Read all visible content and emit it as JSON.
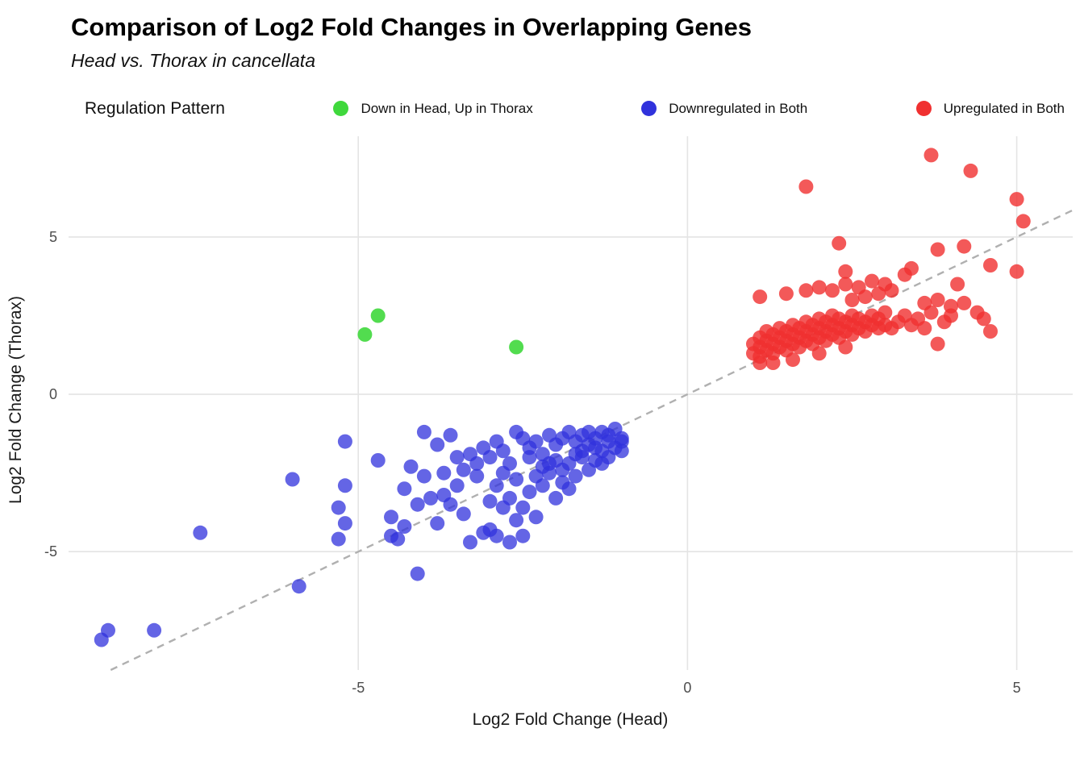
{
  "header": {
    "title": "Comparison of Log2 Fold Changes in Overlapping Genes",
    "subtitle": "Head vs. Thorax in cancellata"
  },
  "legend": {
    "title": "Regulation Pattern",
    "items": [
      {
        "label": "Down in Head, Up in Thorax",
        "color": "#3fd83c"
      },
      {
        "label": "Downregulated in Both",
        "color": "#3032dc"
      },
      {
        "label": "Upregulated in Both",
        "color": "#f03030"
      }
    ]
  },
  "chart_data": {
    "type": "scatter",
    "title": "Comparison of Log2 Fold Changes in Overlapping Genes",
    "subtitle": "Head vs. Thorax in cancellata",
    "xlabel": "Log2 Fold Change (Head)",
    "ylabel": "Log2 Fold Change (Thorax)",
    "xlim": [
      -9.4,
      5.85
    ],
    "ylim": [
      -8.76,
      8.2
    ],
    "x_ticks": [
      -5,
      0,
      5
    ],
    "y_ticks": [
      -5,
      0,
      5
    ],
    "grid": true,
    "legend_position": "top",
    "reference_line": {
      "type": "identity",
      "style": "dashed",
      "color": "#b0b0b0"
    },
    "series": [
      {
        "name": "Down in Head, Up in Thorax",
        "color": "#3fd83c",
        "opacity": 0.9,
        "points": [
          [
            -4.9,
            1.9
          ],
          [
            -4.7,
            2.5
          ],
          [
            -2.6,
            1.5
          ]
        ]
      },
      {
        "name": "Downregulated in Both",
        "color": "#3032dc",
        "opacity": 0.75,
        "points": [
          [
            -8.8,
            -7.5
          ],
          [
            -8.9,
            -7.8
          ],
          [
            -8.1,
            -7.5
          ],
          [
            -7.4,
            -4.4
          ],
          [
            -5.9,
            -6.1
          ],
          [
            -6.0,
            -2.7
          ],
          [
            -5.2,
            -1.5
          ],
          [
            -5.2,
            -2.9
          ],
          [
            -5.3,
            -3.6
          ],
          [
            -5.2,
            -4.1
          ],
          [
            -5.3,
            -4.6
          ],
          [
            -4.7,
            -2.1
          ],
          [
            -4.5,
            -3.9
          ],
          [
            -4.5,
            -4.5
          ],
          [
            -4.4,
            -4.6
          ],
          [
            -4.3,
            -4.2
          ],
          [
            -4.3,
            -3.0
          ],
          [
            -4.2,
            -2.3
          ],
          [
            -4.1,
            -3.5
          ],
          [
            -4.1,
            -5.7
          ],
          [
            -4.0,
            -2.6
          ],
          [
            -4.0,
            -1.2
          ],
          [
            -3.9,
            -3.3
          ],
          [
            -3.8,
            -4.1
          ],
          [
            -3.8,
            -1.6
          ],
          [
            -3.7,
            -3.2
          ],
          [
            -3.7,
            -2.5
          ],
          [
            -3.6,
            -3.5
          ],
          [
            -3.6,
            -1.3
          ],
          [
            -3.5,
            -2.9
          ],
          [
            -3.5,
            -2.0
          ],
          [
            -3.4,
            -3.8
          ],
          [
            -3.4,
            -2.4
          ],
          [
            -3.3,
            -4.7
          ],
          [
            -3.3,
            -1.9
          ],
          [
            -3.2,
            -2.6
          ],
          [
            -3.2,
            -2.2
          ],
          [
            -3.1,
            -4.4
          ],
          [
            -3.1,
            -1.7
          ],
          [
            -3.0,
            -4.3
          ],
          [
            -3.0,
            -3.4
          ],
          [
            -3.0,
            -2.0
          ],
          [
            -2.9,
            -4.5
          ],
          [
            -2.9,
            -2.9
          ],
          [
            -2.9,
            -1.5
          ],
          [
            -2.8,
            -3.6
          ],
          [
            -2.8,
            -2.5
          ],
          [
            -2.8,
            -1.8
          ],
          [
            -2.7,
            -4.7
          ],
          [
            -2.7,
            -3.3
          ],
          [
            -2.7,
            -2.2
          ],
          [
            -2.6,
            -4.0
          ],
          [
            -2.6,
            -2.7
          ],
          [
            -2.6,
            -1.2
          ],
          [
            -2.5,
            -4.5
          ],
          [
            -2.5,
            -3.6
          ],
          [
            -2.5,
            -1.4
          ],
          [
            -2.4,
            -3.1
          ],
          [
            -2.4,
            -2.0
          ],
          [
            -2.4,
            -1.7
          ],
          [
            -2.3,
            -3.9
          ],
          [
            -2.3,
            -2.6
          ],
          [
            -2.3,
            -1.5
          ],
          [
            -2.2,
            -2.9
          ],
          [
            -2.2,
            -2.3
          ],
          [
            -2.2,
            -1.9
          ],
          [
            -2.1,
            -2.5
          ],
          [
            -2.1,
            -2.2
          ],
          [
            -2.1,
            -1.3
          ],
          [
            -2.0,
            -3.3
          ],
          [
            -2.0,
            -2.1
          ],
          [
            -2.0,
            -1.6
          ],
          [
            -1.9,
            -2.8
          ],
          [
            -1.9,
            -2.4
          ],
          [
            -1.9,
            -1.4
          ],
          [
            -1.8,
            -3.0
          ],
          [
            -1.8,
            -2.2
          ],
          [
            -1.8,
            -1.2
          ],
          [
            -1.7,
            -2.6
          ],
          [
            -1.7,
            -1.9
          ],
          [
            -1.7,
            -1.5
          ],
          [
            -1.6,
            -2.0
          ],
          [
            -1.6,
            -1.8
          ],
          [
            -1.6,
            -1.3
          ],
          [
            -1.5,
            -2.4
          ],
          [
            -1.5,
            -1.6
          ],
          [
            -1.5,
            -1.2
          ],
          [
            -1.4,
            -2.1
          ],
          [
            -1.4,
            -1.7
          ],
          [
            -1.4,
            -1.4
          ],
          [
            -1.3,
            -2.2
          ],
          [
            -1.3,
            -1.8
          ],
          [
            -1.3,
            -1.2
          ],
          [
            -1.2,
            -2.0
          ],
          [
            -1.2,
            -1.5
          ],
          [
            -1.2,
            -1.3
          ],
          [
            -1.1,
            -1.7
          ],
          [
            -1.1,
            -1.1
          ],
          [
            -1.0,
            -1.8
          ],
          [
            -1.0,
            -1.5
          ],
          [
            -1.0,
            -1.4
          ]
        ]
      },
      {
        "name": "Upregulated in Both",
        "color": "#f03030",
        "opacity": 0.8,
        "points": [
          [
            1.8,
            6.6
          ],
          [
            3.7,
            7.6
          ],
          [
            4.3,
            7.1
          ],
          [
            5.0,
            6.2
          ],
          [
            5.1,
            5.5
          ],
          [
            2.3,
            4.8
          ],
          [
            3.8,
            4.6
          ],
          [
            4.2,
            4.7
          ],
          [
            4.6,
            4.1
          ],
          [
            5.0,
            3.9
          ],
          [
            3.4,
            4.0
          ],
          [
            2.4,
            3.9
          ],
          [
            4.1,
            3.5
          ],
          [
            3.3,
            3.8
          ],
          [
            1.1,
            3.1
          ],
          [
            1.5,
            3.2
          ],
          [
            1.8,
            3.3
          ],
          [
            2.0,
            3.4
          ],
          [
            2.2,
            3.3
          ],
          [
            2.4,
            3.5
          ],
          [
            2.6,
            3.4
          ],
          [
            2.8,
            3.6
          ],
          [
            3.0,
            3.5
          ],
          [
            3.1,
            3.3
          ],
          [
            2.9,
            3.2
          ],
          [
            2.7,
            3.1
          ],
          [
            2.5,
            3.0
          ],
          [
            3.6,
            2.9
          ],
          [
            3.8,
            3.0
          ],
          [
            4.0,
            2.8
          ],
          [
            1.0,
            1.3
          ],
          [
            1.0,
            1.6
          ],
          [
            1.1,
            1.2
          ],
          [
            1.1,
            1.5
          ],
          [
            1.1,
            1.8
          ],
          [
            1.2,
            1.4
          ],
          [
            1.2,
            1.7
          ],
          [
            1.2,
            2.0
          ],
          [
            1.3,
            1.3
          ],
          [
            1.3,
            1.6
          ],
          [
            1.3,
            1.9
          ],
          [
            1.4,
            1.5
          ],
          [
            1.4,
            1.8
          ],
          [
            1.4,
            2.1
          ],
          [
            1.5,
            1.4
          ],
          [
            1.5,
            1.7
          ],
          [
            1.5,
            2.0
          ],
          [
            1.6,
            1.6
          ],
          [
            1.6,
            1.9
          ],
          [
            1.6,
            2.2
          ],
          [
            1.7,
            1.5
          ],
          [
            1.7,
            1.8
          ],
          [
            1.7,
            2.1
          ],
          [
            1.8,
            1.7
          ],
          [
            1.8,
            2.0
          ],
          [
            1.8,
            2.3
          ],
          [
            1.9,
            1.6
          ],
          [
            1.9,
            1.9
          ],
          [
            1.9,
            2.2
          ],
          [
            2.0,
            1.8
          ],
          [
            2.0,
            2.1
          ],
          [
            2.0,
            2.4
          ],
          [
            2.1,
            1.7
          ],
          [
            2.1,
            2.0
          ],
          [
            2.1,
            2.3
          ],
          [
            2.2,
            1.9
          ],
          [
            2.2,
            2.2
          ],
          [
            2.2,
            2.5
          ],
          [
            2.3,
            1.8
          ],
          [
            2.3,
            2.1
          ],
          [
            2.3,
            2.4
          ],
          [
            2.4,
            2.0
          ],
          [
            2.4,
            2.3
          ],
          [
            2.5,
            1.9
          ],
          [
            2.5,
            2.2
          ],
          [
            2.5,
            2.5
          ],
          [
            2.6,
            2.1
          ],
          [
            2.6,
            2.4
          ],
          [
            2.7,
            2.0
          ],
          [
            2.7,
            2.3
          ],
          [
            2.8,
            2.2
          ],
          [
            2.8,
            2.5
          ],
          [
            2.9,
            2.1
          ],
          [
            2.9,
            2.4
          ],
          [
            3.0,
            2.2
          ],
          [
            3.0,
            2.6
          ],
          [
            3.1,
            2.1
          ],
          [
            3.2,
            2.3
          ],
          [
            3.3,
            2.5
          ],
          [
            3.4,
            2.2
          ],
          [
            3.5,
            2.4
          ],
          [
            3.6,
            2.1
          ],
          [
            3.7,
            2.6
          ],
          [
            3.8,
            1.6
          ],
          [
            3.9,
            2.3
          ],
          [
            4.0,
            2.5
          ],
          [
            4.2,
            2.9
          ],
          [
            4.4,
            2.6
          ],
          [
            4.5,
            2.4
          ],
          [
            4.6,
            2.0
          ],
          [
            1.6,
            1.1
          ],
          [
            1.3,
            1.0
          ],
          [
            2.0,
            1.3
          ],
          [
            2.4,
            1.5
          ],
          [
            1.1,
            1.0
          ]
        ]
      }
    ]
  }
}
